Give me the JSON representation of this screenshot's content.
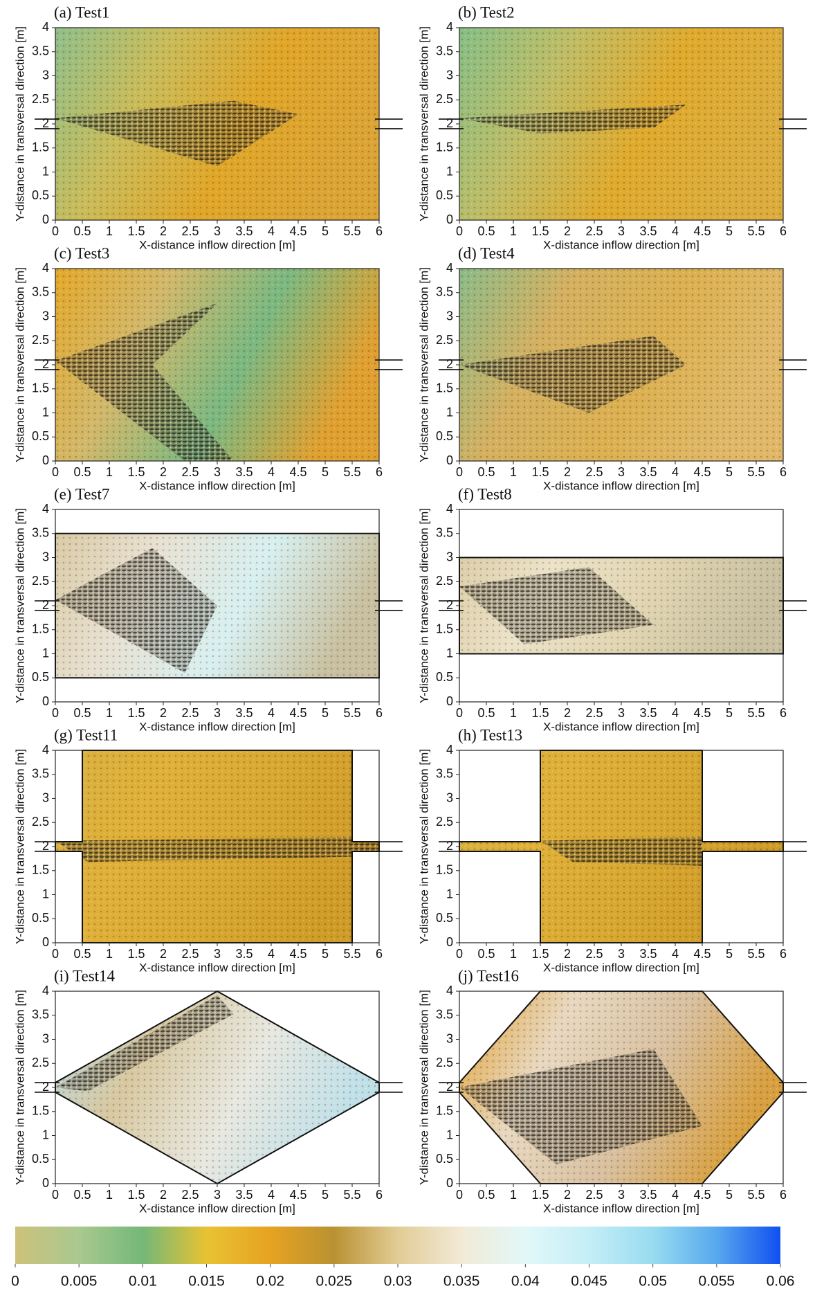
{
  "chart_data": [
    {
      "type": "heatmap",
      "title": "(a) Test1",
      "xlabel": "X-distance inflow direction [m]",
      "ylabel": "Y-distance in transversal direction [m]",
      "xlim": [
        0,
        6
      ],
      "ylim": [
        0,
        4
      ],
      "xticks": [
        0,
        0.5,
        1,
        1.5,
        2,
        2.5,
        3,
        3.5,
        4,
        4.5,
        5,
        5.5,
        6
      ],
      "yticks": [
        0,
        0.5,
        1,
        1.5,
        2,
        2.5,
        3,
        3.5,
        4
      ]
    },
    {
      "type": "heatmap",
      "title": "(b) Test2",
      "xlabel": "X-distance inflow direction [m]",
      "ylabel": "Y-distance in transversal direction [m]",
      "xlim": [
        0,
        6
      ],
      "ylim": [
        0,
        4
      ],
      "xticks": [
        0,
        0.5,
        1,
        1.5,
        2,
        2.5,
        3,
        3.5,
        4,
        4.5,
        5,
        5.5,
        6
      ],
      "yticks": [
        0,
        0.5,
        1,
        1.5,
        2,
        2.5,
        3,
        3.5,
        4
      ]
    },
    {
      "type": "heatmap",
      "title": "(c) Test3",
      "xlabel": "X-distance inflow direction [m]",
      "ylabel": "Y-distance in transversal direction [m]",
      "xlim": [
        0,
        6
      ],
      "ylim": [
        0,
        4
      ],
      "xticks": [
        0,
        0.5,
        1,
        1.5,
        2,
        2.5,
        3,
        3.5,
        4,
        4.5,
        5,
        5.5,
        6
      ],
      "yticks": [
        0,
        0.5,
        1,
        1.5,
        2,
        2.5,
        3,
        3.5,
        4
      ]
    },
    {
      "type": "heatmap",
      "title": "(d) Test4",
      "xlabel": "X-distance inflow direction [m]",
      "ylabel": "Y-distance in transversal direction [m]",
      "xlim": [
        0,
        6
      ],
      "ylim": [
        0,
        4
      ],
      "xticks": [
        0,
        0.5,
        1,
        1.5,
        2,
        2.5,
        3,
        3.5,
        4,
        4.5,
        5,
        5.5,
        6
      ],
      "yticks": [
        0,
        0.5,
        1,
        1.5,
        2,
        2.5,
        3,
        3.5,
        4
      ]
    },
    {
      "type": "heatmap",
      "title": "(e) Test7",
      "xlabel": "X-distance inflow direction [m]",
      "ylabel": "Y-distance in transversal direction [m]",
      "xlim": [
        0,
        6
      ],
      "ylim": [
        0,
        4
      ],
      "xticks": [
        0,
        0.5,
        1,
        1.5,
        2,
        2.5,
        3,
        3.5,
        4,
        4.5,
        5,
        5.5,
        6
      ],
      "yticks": [
        0,
        0.5,
        1,
        1.5,
        2,
        2.5,
        3,
        3.5,
        4
      ]
    },
    {
      "type": "heatmap",
      "title": "(f) Test8",
      "xlabel": "X-distance inflow direction [m]",
      "ylabel": "Y-distance in transversal direction [m]",
      "xlim": [
        0,
        6
      ],
      "ylim": [
        0,
        4
      ],
      "xticks": [
        0,
        0.5,
        1,
        1.5,
        2,
        2.5,
        3,
        3.5,
        4,
        4.5,
        5,
        5.5,
        6
      ],
      "yticks": [
        0,
        0.5,
        1,
        1.5,
        2,
        2.5,
        3,
        3.5,
        4
      ]
    },
    {
      "type": "heatmap",
      "title": "(g) Test11",
      "xlabel": "X-distance inflow direction [m]",
      "ylabel": "Y-distance in transversal direction [m]",
      "xlim": [
        0,
        6
      ],
      "ylim": [
        0,
        4
      ],
      "xticks": [
        0,
        0.5,
        1,
        1.5,
        2,
        2.5,
        3,
        3.5,
        4,
        4.5,
        5,
        5.5,
        6
      ],
      "yticks": [
        0,
        0.5,
        1,
        1.5,
        2,
        2.5,
        3,
        3.5,
        4
      ]
    },
    {
      "type": "heatmap",
      "title": "(h) Test13",
      "xlabel": "X-distance inflow direction [m]",
      "ylabel": "Y-distance in transversal direction [m]",
      "xlim": [
        0,
        6
      ],
      "ylim": [
        0,
        4
      ],
      "xticks": [
        0,
        0.5,
        1,
        1.5,
        2,
        2.5,
        3,
        3.5,
        4,
        4.5,
        5,
        5.5,
        6
      ],
      "yticks": [
        0,
        0.5,
        1,
        1.5,
        2,
        2.5,
        3,
        3.5,
        4
      ]
    },
    {
      "type": "heatmap",
      "title": "(i) Test14",
      "xlabel": "X-distance inflow direction [m]",
      "ylabel": "Y-distance in transversal direction [m]",
      "xlim": [
        0,
        6
      ],
      "ylim": [
        0,
        4
      ],
      "xticks": [
        0,
        0.5,
        1,
        1.5,
        2,
        2.5,
        3,
        3.5,
        4,
        4.5,
        5,
        5.5,
        6
      ],
      "yticks": [
        0,
        0.5,
        1,
        1.5,
        2,
        2.5,
        3,
        3.5,
        4
      ]
    },
    {
      "type": "heatmap",
      "title": "(j) Test16",
      "xlabel": "X-distance inflow direction [m]",
      "ylabel": "Y-distance in transversal direction [m]",
      "xlim": [
        0,
        6
      ],
      "ylim": [
        0,
        4
      ],
      "xticks": [
        0,
        0.5,
        1,
        1.5,
        2,
        2.5,
        3,
        3.5,
        4,
        4.5,
        5,
        5.5,
        6
      ],
      "yticks": [
        0,
        0.5,
        1,
        1.5,
        2,
        2.5,
        3,
        3.5,
        4
      ]
    },
    {
      "type": "colorbar",
      "xlim": [
        0,
        0.06
      ],
      "xticks": [
        0,
        0.005,
        0.01,
        0.015,
        0.02,
        0.025,
        0.03,
        0.035,
        0.04,
        0.045,
        0.05,
        0.055,
        0.06
      ],
      "colors": [
        "#cdc27a",
        "#a9c890",
        "#74b878",
        "#e8c232",
        "#e7a222",
        "#b99232",
        "#e2cc96",
        "#f2ead6",
        "#e2f8f8",
        "#c4eef6",
        "#98dcf0",
        "#58a8ee",
        "#1050f0"
      ]
    }
  ]
}
